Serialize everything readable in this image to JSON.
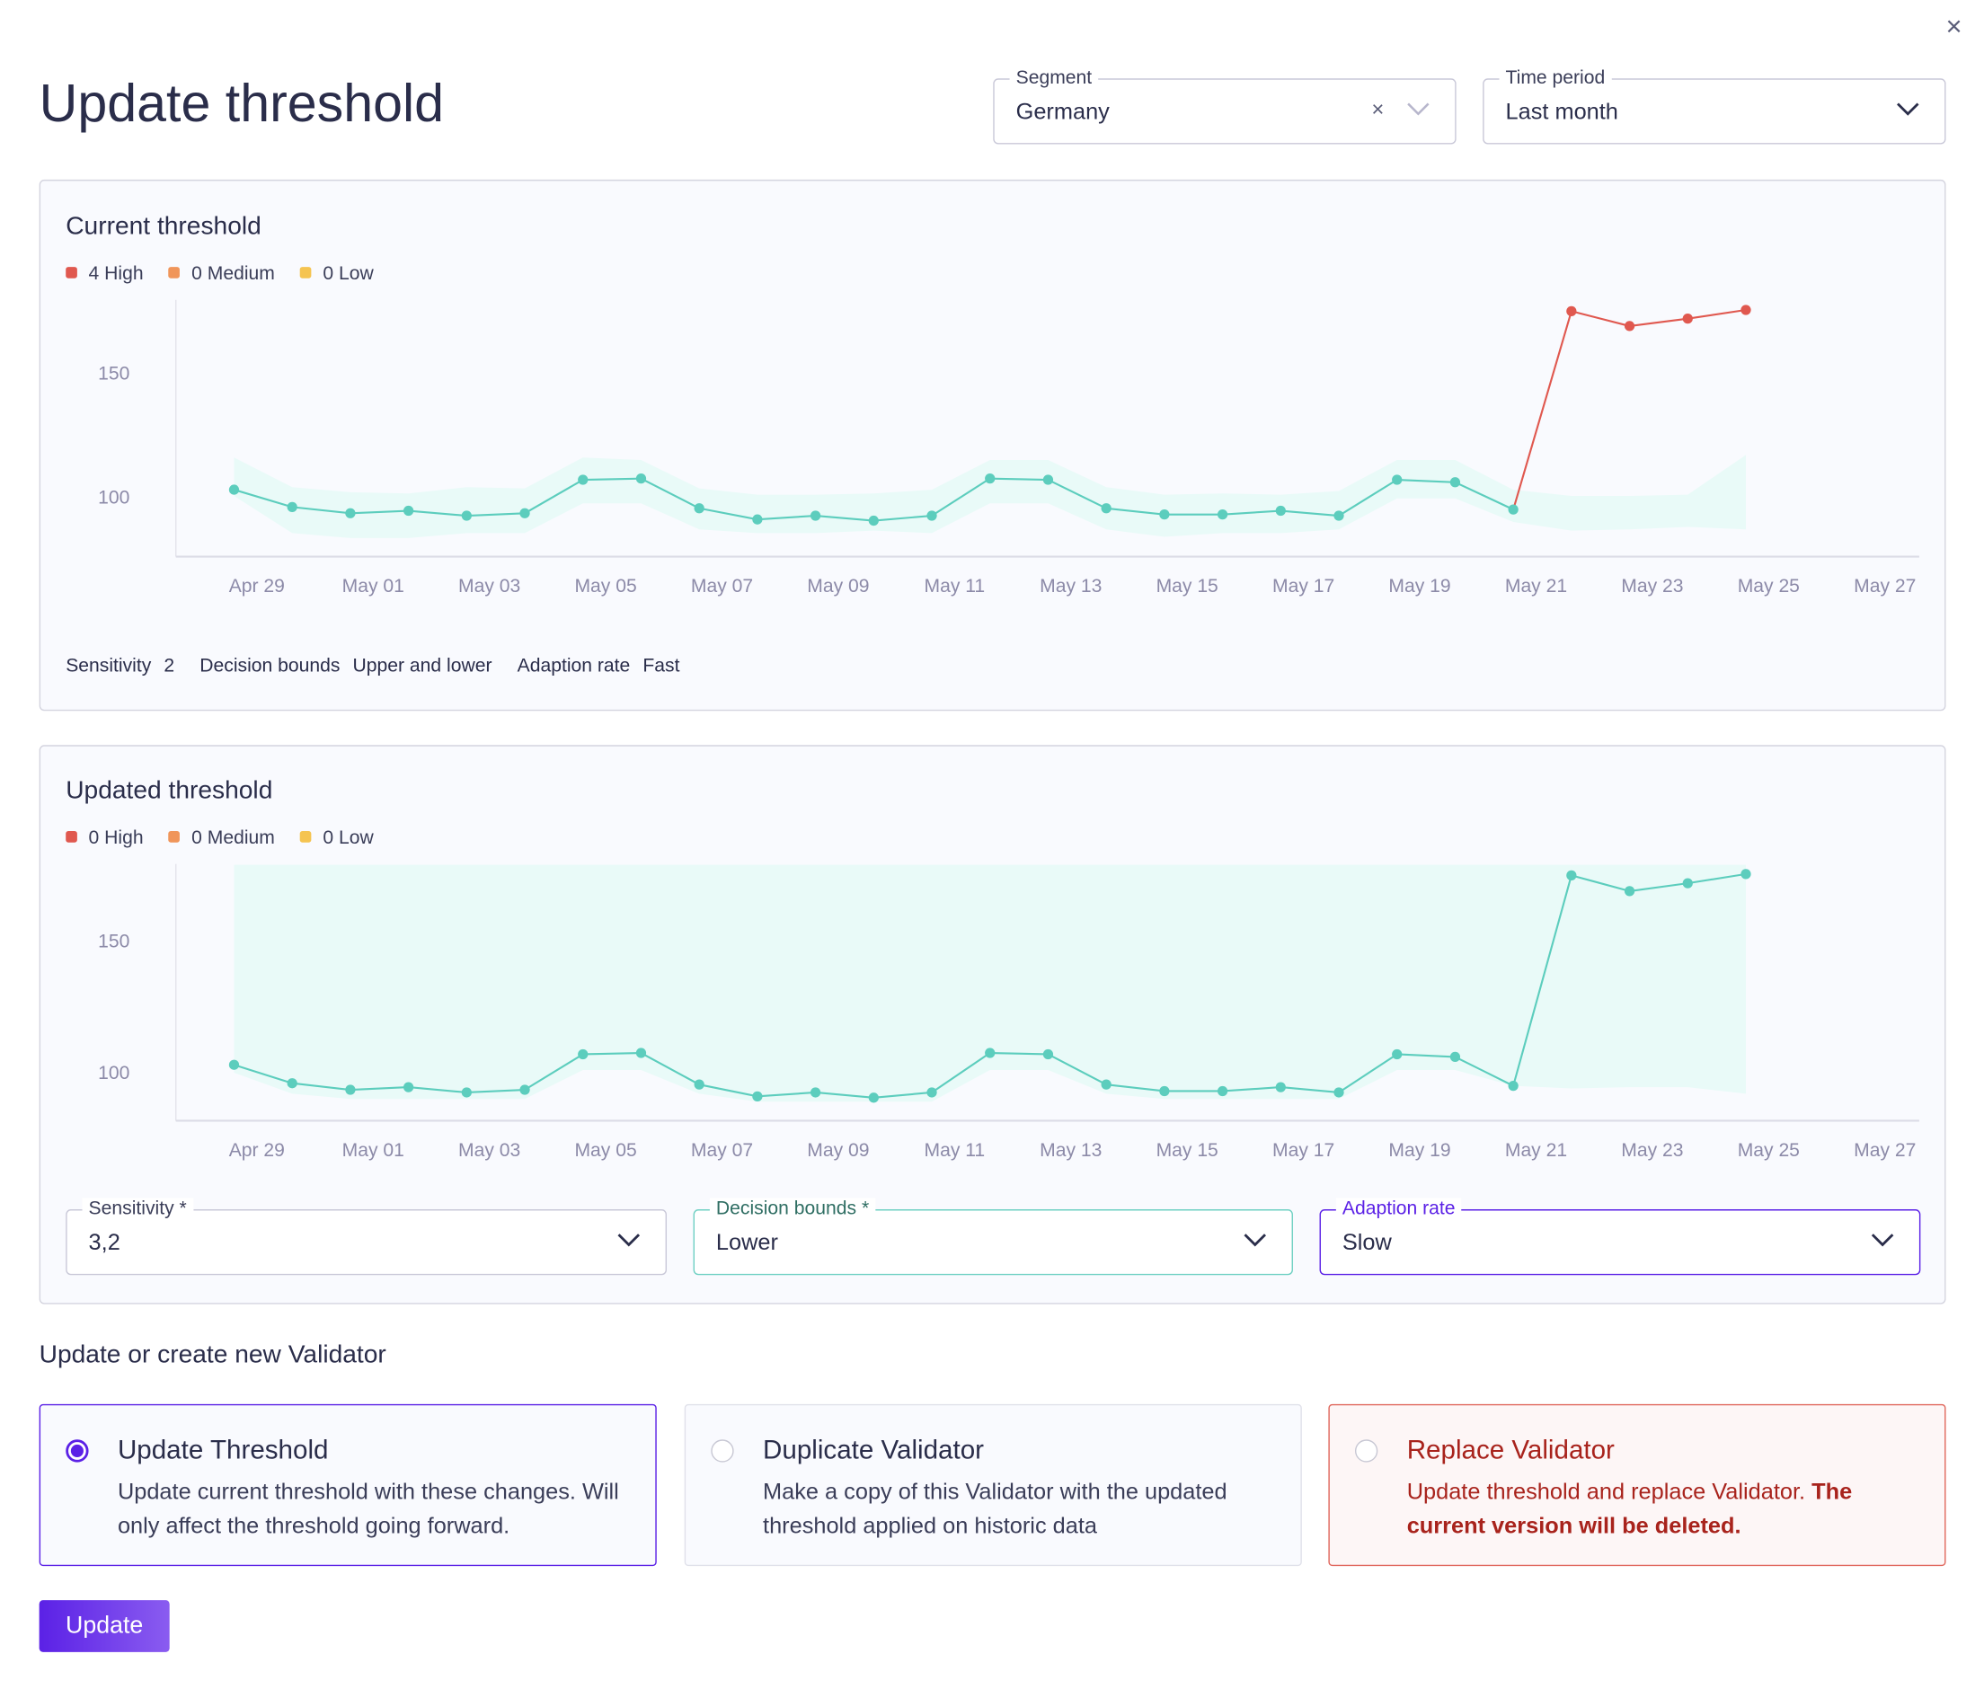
{
  "header": {
    "title": "Update threshold",
    "close_label": "×"
  },
  "segment": {
    "label": "Segment",
    "value": "Germany",
    "clear": "×"
  },
  "time_period": {
    "label": "Time period",
    "value": "Last month"
  },
  "current": {
    "title": "Current threshold",
    "legend": {
      "high": "4 High",
      "medium": "0 Medium",
      "low": "0 Low"
    },
    "params": {
      "sensitivity_label": "Sensitivity",
      "sensitivity": "2",
      "bounds_label": "Decision bounds",
      "bounds": "Upper and lower",
      "rate_label": "Adaption rate",
      "rate": "Fast"
    }
  },
  "updated": {
    "title": "Updated threshold",
    "legend": {
      "high": "0 High",
      "medium": "0 Medium",
      "low": "0 Low"
    },
    "sensitivity": {
      "label": "Sensitivity *",
      "value": "3,2"
    },
    "bounds": {
      "label": "Decision bounds *",
      "value": "Lower"
    },
    "rate": {
      "label": "Adaption rate",
      "value": "Slow"
    }
  },
  "validator": {
    "heading": "Update or create new Validator",
    "options": [
      {
        "title": "Update Threshold",
        "desc": "Update current threshold with these changes. Will only affect the threshold going forward.",
        "selected": true
      },
      {
        "title": "Duplicate Validator",
        "desc": "Make a copy of this Validator with the updated threshold applied on historic data",
        "selected": false
      },
      {
        "title": "Replace Validator",
        "desc": "Update threshold and replace Validator.",
        "desc_bold": "The current version will be deleted.",
        "selected": false
      }
    ],
    "submit": "Update"
  },
  "colors": {
    "high": "#e0584f",
    "medium": "#f0955a",
    "low": "#f5c451",
    "normal": "#5ccdbd",
    "band": "#e9faf8",
    "accent": "#5b21e6"
  },
  "chart_data": [
    {
      "type": "line",
      "title": "Current threshold",
      "ylim_ticks": [
        100,
        150
      ],
      "x_labels": [
        "Apr 29",
        "May 01",
        "May 03",
        "May 05",
        "May 07",
        "May 09",
        "May 11",
        "May 13",
        "May 15",
        "May 17",
        "May 19",
        "May 21",
        "May 23",
        "May 25",
        "May 27"
      ],
      "dates": [
        "Apr 29",
        "Apr 30",
        "May 01",
        "May 02",
        "May 03",
        "May 04",
        "May 05",
        "May 06",
        "May 07",
        "May 08",
        "May 09",
        "May 10",
        "May 11",
        "May 12",
        "May 13",
        "May 14",
        "May 15",
        "May 16",
        "May 17",
        "May 18",
        "May 19",
        "May 20",
        "May 21",
        "May 22",
        "May 23",
        "May 24",
        "May 25"
      ],
      "values": [
        103,
        96,
        93.5,
        94.5,
        92.5,
        93.5,
        107,
        107.5,
        95.5,
        91,
        92.5,
        90.5,
        92.5,
        107.5,
        107,
        95.5,
        93,
        93,
        94.5,
        92.5,
        107,
        106,
        95,
        175,
        169,
        172,
        175.5
      ],
      "upper": [
        116,
        104,
        102,
        101.5,
        104,
        103.5,
        116,
        115,
        103.5,
        101,
        101,
        101.5,
        103,
        115,
        115,
        104,
        101,
        101.5,
        101,
        102.5,
        115,
        115,
        103,
        100.5,
        100.5,
        101,
        117
      ],
      "lower": [
        100.5,
        85.5,
        83.5,
        83.5,
        85.5,
        85.5,
        97.5,
        97.5,
        87,
        85.5,
        85.5,
        86.5,
        85.5,
        97.5,
        97.5,
        87,
        84,
        85.5,
        85.5,
        87,
        99.5,
        99.5,
        90,
        86.5,
        87,
        88,
        87
      ],
      "high_from_index": 23
    },
    {
      "type": "line",
      "title": "Updated threshold",
      "ylim_ticks": [
        100,
        150
      ],
      "x_labels": [
        "Apr 29",
        "May 01",
        "May 03",
        "May 05",
        "May 07",
        "May 09",
        "May 11",
        "May 13",
        "May 15",
        "May 17",
        "May 19",
        "May 21",
        "May 23",
        "May 25",
        "May 27"
      ],
      "dates": [
        "Apr 29",
        "Apr 30",
        "May 01",
        "May 02",
        "May 03",
        "May 04",
        "May 05",
        "May 06",
        "May 07",
        "May 08",
        "May 09",
        "May 10",
        "May 11",
        "May 12",
        "May 13",
        "May 14",
        "May 15",
        "May 16",
        "May 17",
        "May 18",
        "May 19",
        "May 20",
        "May 21",
        "May 22",
        "May 23",
        "May 24",
        "May 25"
      ],
      "values": [
        103,
        96,
        93.5,
        94.5,
        92.5,
        93.5,
        107,
        107.5,
        95.5,
        91,
        92.5,
        90.5,
        92.5,
        107.5,
        107,
        95.5,
        93,
        93,
        94.5,
        92.5,
        107,
        106,
        95,
        175,
        169,
        172,
        175.5
      ],
      "upper": [
        179,
        179,
        179,
        179,
        179,
        179,
        179,
        179,
        179,
        179,
        179,
        179,
        179,
        179,
        179,
        179,
        179,
        179,
        179,
        179,
        179,
        179,
        179,
        179,
        179,
        179,
        179
      ],
      "lower": [
        100,
        92,
        90,
        90,
        90,
        90,
        101,
        101,
        92,
        89,
        89,
        89,
        89,
        101,
        101,
        92,
        90,
        90,
        90,
        90,
        101,
        101,
        95,
        94,
        94.5,
        94.5,
        92
      ],
      "high_from_index": -1
    }
  ]
}
